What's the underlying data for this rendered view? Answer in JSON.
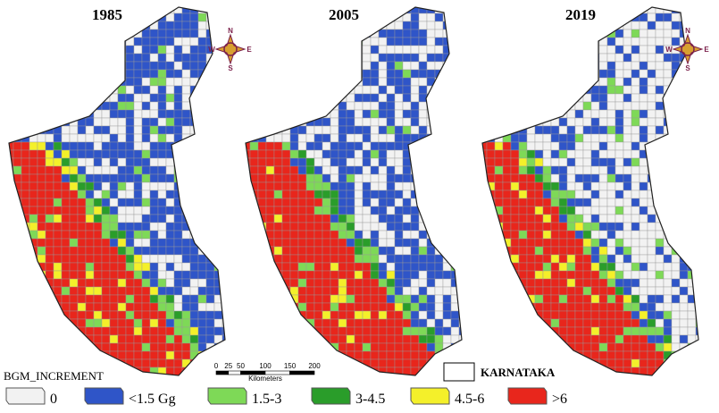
{
  "maps": [
    {
      "year": "1985"
    },
    {
      "year": "2005"
    },
    {
      "year": "2019"
    }
  ],
  "compass": {
    "n": "N",
    "s": "S",
    "e": "E",
    "w": "W"
  },
  "scale_bar": {
    "ticks": [
      0,
      25,
      50,
      100,
      150,
      200
    ],
    "unit": "Kilometers"
  },
  "boundary_label": "KARNATAKA",
  "legend": {
    "title": "BGM_INCREMENT",
    "items": [
      {
        "label": "0",
        "color": "#f2f2f2"
      },
      {
        "label": "<1.5 Gg",
        "color": "#2f55c8"
      },
      {
        "label": "1.5-3",
        "color": "#7ed957"
      },
      {
        "label": "3-4.5",
        "color": "#2a9d2a"
      },
      {
        "label": "4.5-6",
        "color": "#f4f02a"
      },
      {
        "label": ">6",
        "color": "#e8261c"
      }
    ]
  }
}
